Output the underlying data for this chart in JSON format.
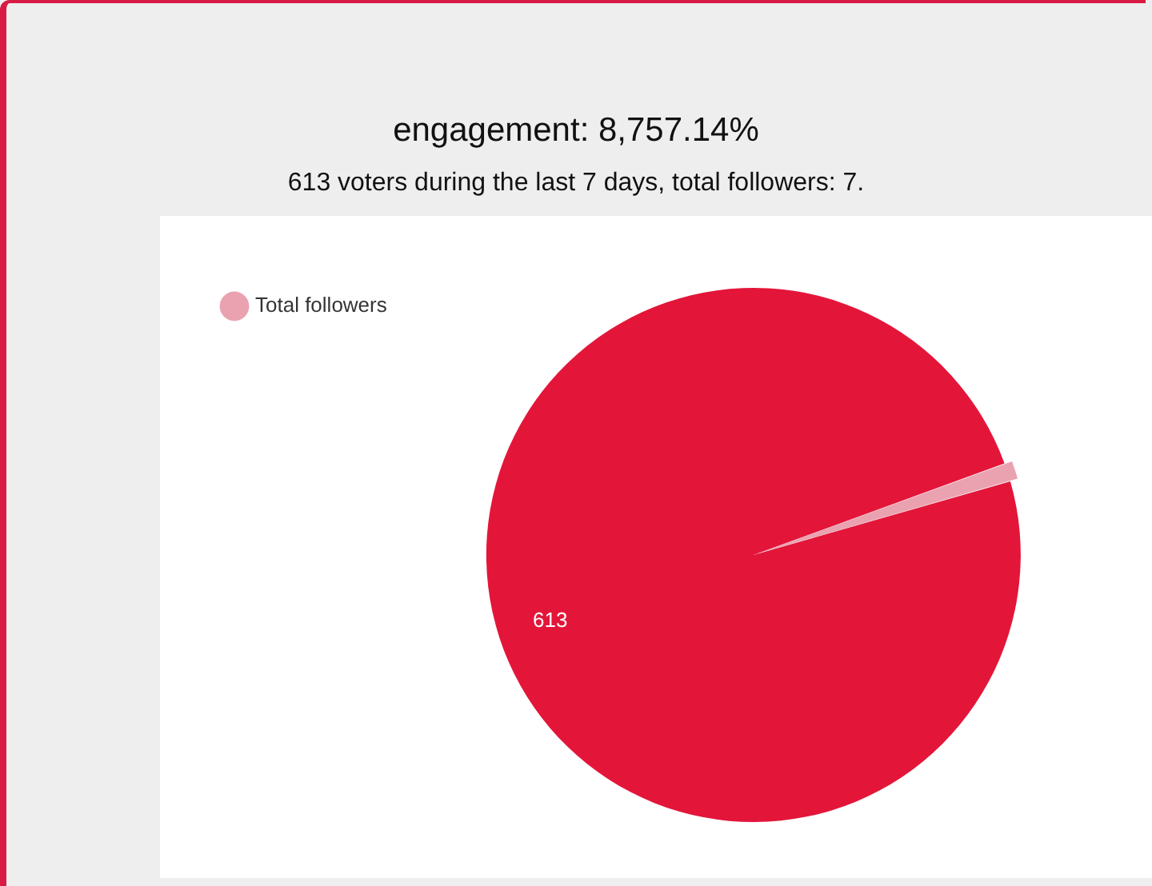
{
  "chart_data": {
    "type": "pie",
    "title": "engagement: 8,757.14%",
    "subtitle": "613 voters during the last 7 days, total followers: 7.",
    "categories": [
      null,
      "Total followers"
    ],
    "values": [
      613,
      7
    ],
    "colors": [
      "#e3163a",
      "#eaa2b0"
    ],
    "value_labels": [
      "613",
      null
    ],
    "legend": "top left"
  }
}
